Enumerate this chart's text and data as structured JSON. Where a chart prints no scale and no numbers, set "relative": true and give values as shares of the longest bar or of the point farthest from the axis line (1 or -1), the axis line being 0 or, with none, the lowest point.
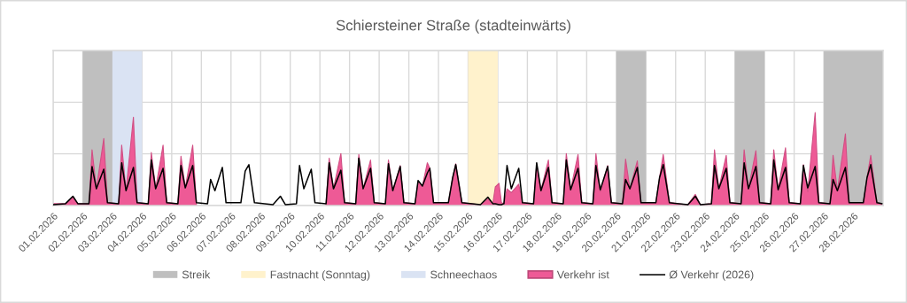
{
  "chart_data": {
    "type": "area",
    "title": "Schiersteiner Straße (stadteinwärts)",
    "relative": true,
    "grid": true,
    "legend": "bottom",
    "tick_labels": "x",
    "xlim": [
      "2026-02-01",
      "2026-03-01"
    ],
    "xticks": [
      {
        "value": "2026-02-01",
        "label": "01.02.2026"
      },
      {
        "value": "2026-02-02",
        "label": "02.02.2026"
      },
      {
        "value": "2026-02-03",
        "label": "03.02.2026"
      },
      {
        "value": "2026-02-04",
        "label": "04.02.2026"
      },
      {
        "value": "2026-02-05",
        "label": "05.02.2026"
      },
      {
        "value": "2026-02-06",
        "label": "06.02.2026"
      },
      {
        "value": "2026-02-07",
        "label": "07.02.2026"
      },
      {
        "value": "2026-02-08",
        "label": "08.02.2026"
      },
      {
        "value": "2026-02-09",
        "label": "09.02.2026"
      },
      {
        "value": "2026-02-10",
        "label": "10.02.2026"
      },
      {
        "value": "2026-02-11",
        "label": "11.02.2026"
      },
      {
        "value": "2026-02-12",
        "label": "12.02.2026"
      },
      {
        "value": "2026-02-13",
        "label": "13.02.2026"
      },
      {
        "value": "2026-02-14",
        "label": "14.02.2026"
      },
      {
        "value": "2026-02-15",
        "label": "15.02.2026"
      },
      {
        "value": "2026-02-16",
        "label": "16.02.2026"
      },
      {
        "value": "2026-02-17",
        "label": "17.02.2026"
      },
      {
        "value": "2026-02-18",
        "label": "18.02.2026"
      },
      {
        "value": "2026-02-19",
        "label": "19.02.2026"
      },
      {
        "value": "2026-02-20",
        "label": "20.02.2026"
      },
      {
        "value": "2026-02-21",
        "label": "21.02.2026"
      },
      {
        "value": "2026-02-22",
        "label": "22.02.2026"
      },
      {
        "value": "2026-02-23",
        "label": "23.02.2026"
      },
      {
        "value": "2026-02-24",
        "label": "24.02.2026"
      },
      {
        "value": "2026-02-25",
        "label": "25.02.2026"
      },
      {
        "value": "2026-02-26",
        "label": "26.02.2026"
      },
      {
        "value": "2026-02-27",
        "label": "27.02.2026"
      },
      {
        "value": "2026-02-28",
        "label": "28.02.2026"
      }
    ],
    "bands": [
      {
        "axis": "x",
        "from": "2026-02-02",
        "to": "2026-02-03",
        "label": "Streik",
        "color": "#bfbfbf"
      },
      {
        "axis": "x",
        "from": "2026-02-15",
        "to": "2026-02-16",
        "label": "Fastnacht (Sonntag)",
        "color": "#fff2cc"
      },
      {
        "axis": "x",
        "from": "2026-02-03",
        "to": "2026-02-04",
        "label": "Schneechaos",
        "color": "#dae3f3"
      },
      {
        "axis": "x",
        "from": "2026-02-20",
        "to": "2026-02-21",
        "color": "#bfbfbf"
      },
      {
        "axis": "x",
        "from": "2026-02-24",
        "to": "2026-02-25",
        "color": "#bfbfbf"
      },
      {
        "axis": "x",
        "from": "2026-02-27",
        "to": "2026-03-01",
        "color": "#bfbfbf"
      }
    ],
    "x": [
      "2026-02-01T00:00",
      "2026-02-01T10:00",
      "2026-02-01T16:00",
      "2026-02-01T20:00",
      "2026-02-02T05:00",
      "2026-02-02T07:30",
      "2026-02-02T11:00",
      "2026-02-02T17:00",
      "2026-02-02T20:00",
      "2026-02-03T05:00",
      "2026-02-03T07:30",
      "2026-02-03T11:00",
      "2026-02-03T17:00",
      "2026-02-03T20:00",
      "2026-02-04T05:00",
      "2026-02-04T07:30",
      "2026-02-04T11:00",
      "2026-02-04T17:00",
      "2026-02-04T20:00",
      "2026-02-05T05:00",
      "2026-02-05T07:30",
      "2026-02-05T11:00",
      "2026-02-05T17:00",
      "2026-02-05T20:00",
      "2026-02-06T05:00",
      "2026-02-06T07:30",
      "2026-02-06T11:00",
      "2026-02-06T17:00",
      "2026-02-06T20:00",
      "2026-02-07T08:00",
      "2026-02-07T11:30",
      "2026-02-07T14:30",
      "2026-02-07T19:00",
      "2026-02-08T10:00",
      "2026-02-08T16:00",
      "2026-02-08T20:00",
      "2026-02-09T05:00",
      "2026-02-09T07:30",
      "2026-02-09T11:00",
      "2026-02-09T17:00",
      "2026-02-09T20:00",
      "2026-02-10T05:00",
      "2026-02-10T07:30",
      "2026-02-10T11:00",
      "2026-02-10T17:00",
      "2026-02-10T20:00",
      "2026-02-11T05:00",
      "2026-02-11T07:30",
      "2026-02-11T11:00",
      "2026-02-11T17:00",
      "2026-02-11T20:00",
      "2026-02-12T05:00",
      "2026-02-12T07:30",
      "2026-02-12T11:00",
      "2026-02-12T17:00",
      "2026-02-12T20:00",
      "2026-02-13T05:00",
      "2026-02-13T07:30",
      "2026-02-13T11:00",
      "2026-02-13T15:00",
      "2026-02-13T17:00",
      "2026-02-13T20:00",
      "2026-02-14T08:00",
      "2026-02-14T11:30",
      "2026-02-14T14:00",
      "2026-02-14T19:00",
      "2026-02-15T10:00",
      "2026-02-15T16:00",
      "2026-02-15T20:00",
      "2026-02-15T22:00",
      "2026-02-16T01:00",
      "2026-02-16T03:00",
      "2026-02-16T05:00",
      "2026-02-16T07:30",
      "2026-02-16T11:00",
      "2026-02-16T17:00",
      "2026-02-16T20:00",
      "2026-02-17T05:00",
      "2026-02-17T07:30",
      "2026-02-17T11:00",
      "2026-02-17T17:00",
      "2026-02-17T20:00",
      "2026-02-18T05:00",
      "2026-02-18T07:30",
      "2026-02-18T11:00",
      "2026-02-18T17:00",
      "2026-02-18T20:00",
      "2026-02-19T05:00",
      "2026-02-19T07:30",
      "2026-02-19T11:00",
      "2026-02-19T17:00",
      "2026-02-19T20:00",
      "2026-02-20T05:00",
      "2026-02-20T07:30",
      "2026-02-20T11:00",
      "2026-02-20T17:00",
      "2026-02-20T20:00",
      "2026-02-21T08:00",
      "2026-02-21T11:00",
      "2026-02-21T14:00",
      "2026-02-21T19:00",
      "2026-02-22T10:00",
      "2026-02-22T16:00",
      "2026-02-22T20:00",
      "2026-02-23T05:00",
      "2026-02-23T07:30",
      "2026-02-23T11:00",
      "2026-02-23T17:00",
      "2026-02-23T20:00",
      "2026-02-24T05:00",
      "2026-02-24T07:30",
      "2026-02-24T11:00",
      "2026-02-24T17:00",
      "2026-02-24T20:00",
      "2026-02-25T05:00",
      "2026-02-25T07:30",
      "2026-02-25T11:00",
      "2026-02-25T17:00",
      "2026-02-25T20:00",
      "2026-02-26T05:00",
      "2026-02-26T07:30",
      "2026-02-26T11:00",
      "2026-02-26T17:00",
      "2026-02-26T20:00",
      "2026-02-27T05:00",
      "2026-02-27T07:30",
      "2026-02-27T11:00",
      "2026-02-27T17:30",
      "2026-02-27T20:30",
      "2026-02-28T08:00",
      "2026-02-28T11:00",
      "2026-02-28T14:00",
      "2026-02-28T19:00",
      "2026-02-28T23:00"
    ],
    "series": [
      {
        "name": "Verkehr ist",
        "color": "#ee5a96",
        "values": [
          0.02,
          0.02,
          0.09,
          0.02,
          0.02,
          0.6,
          0.18,
          0.72,
          0.03,
          0.02,
          0.65,
          0.16,
          0.95,
          0.03,
          0.02,
          0.57,
          0.18,
          0.65,
          0.03,
          0.02,
          0.53,
          0.19,
          0.65,
          0.03,
          null,
          null,
          null,
          null,
          null,
          null,
          null,
          null,
          null,
          null,
          null,
          null,
          null,
          null,
          null,
          null,
          null,
          0.02,
          0.51,
          0.18,
          0.56,
          0.03,
          0.02,
          0.55,
          0.18,
          0.49,
          0.03,
          0.02,
          0.49,
          0.16,
          0.43,
          0.03,
          0.02,
          0.25,
          0.21,
          0.46,
          0.4,
          0.03,
          0.03,
          0.3,
          0.45,
          0.03,
          0.01,
          0.07,
          0.02,
          0.2,
          0.24,
          0.03,
          0.02,
          0.18,
          0.14,
          0.23,
          0.03,
          0.02,
          0.44,
          0.16,
          0.49,
          0.03,
          0.02,
          0.56,
          0.17,
          0.55,
          0.03,
          0.02,
          0.56,
          0.15,
          0.43,
          0.03,
          0.02,
          0.5,
          0.18,
          0.48,
          0.03,
          0.03,
          0.3,
          0.55,
          0.03,
          0.01,
          0.12,
          0.01,
          0.02,
          0.6,
          0.18,
          0.54,
          0.03,
          0.02,
          0.6,
          0.18,
          0.59,
          0.03,
          0.02,
          0.6,
          0.17,
          0.62,
          0.03,
          0.02,
          0.44,
          0.15,
          1,
          0.03,
          0.02,
          0.54,
          0.16,
          0.77,
          0.03,
          0.03,
          0.3,
          0.54,
          0.03,
          0.02
        ]
      },
      {
        "name": "Ø Verkehr (2026)",
        "type": "line",
        "color": "#000000",
        "values": [
          0.01,
          0.02,
          0.1,
          0.02,
          0.02,
          0.42,
          0.18,
          0.39,
          0.03,
          0.02,
          0.46,
          0.16,
          0.41,
          0.03,
          0.02,
          0.49,
          0.18,
          0.4,
          0.03,
          0.02,
          0.43,
          0.19,
          0.43,
          0.03,
          0.02,
          0.28,
          0.16,
          0.41,
          0.03,
          0.03,
          0.37,
          0.44,
          0.03,
          0.01,
          0.1,
          0.01,
          0.02,
          0.43,
          0.18,
          0.39,
          0.03,
          0.02,
          0.46,
          0.18,
          0.38,
          0.03,
          0.02,
          0.51,
          0.18,
          0.4,
          0.03,
          0.02,
          0.45,
          0.16,
          0.42,
          0.03,
          0.02,
          0.27,
          0.21,
          0.35,
          0.4,
          0.03,
          0.03,
          0.3,
          0.44,
          0.03,
          0.01,
          0.09,
          0.02,
          0.02,
          0.01,
          0.01,
          0.02,
          0.43,
          0.18,
          0.4,
          0.03,
          0.02,
          0.46,
          0.16,
          0.41,
          0.03,
          0.02,
          0.49,
          0.17,
          0.4,
          0.03,
          0.02,
          0.43,
          0.17,
          0.42,
          0.03,
          0.02,
          0.28,
          0.18,
          0.41,
          0.03,
          0.03,
          0.3,
          0.44,
          0.03,
          0.01,
          0.1,
          0.01,
          0.02,
          0.43,
          0.18,
          0.4,
          0.03,
          0.02,
          0.46,
          0.18,
          0.42,
          0.03,
          0.02,
          0.49,
          0.17,
          0.41,
          0.03,
          0.02,
          0.43,
          0.19,
          0.42,
          0.03,
          0.02,
          0.28,
          0.16,
          0.41,
          0.03,
          0.03,
          0.3,
          0.44,
          0.03,
          0.02
        ]
      }
    ]
  }
}
